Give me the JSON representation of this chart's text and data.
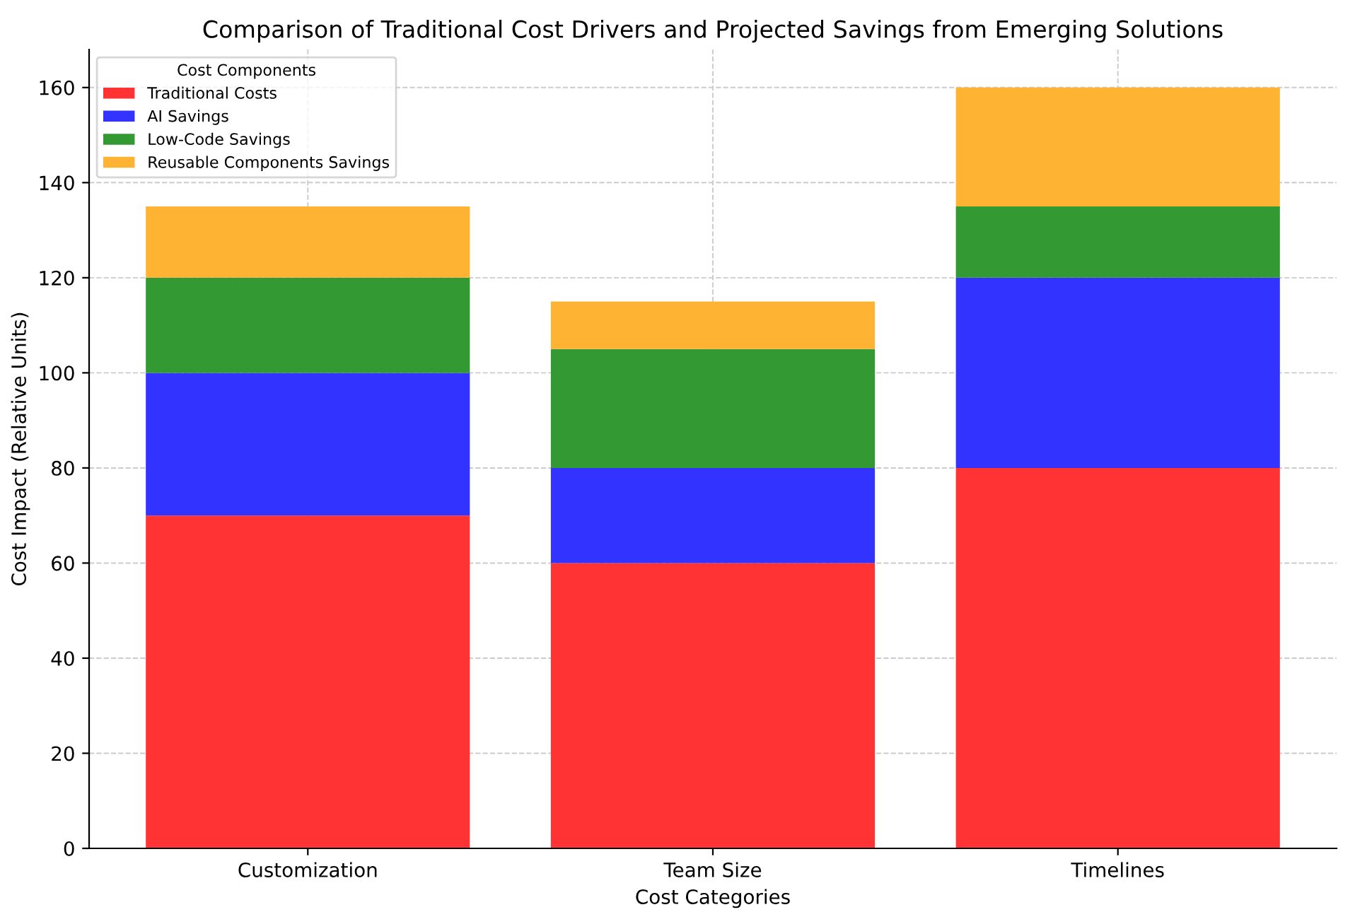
{
  "chart_data": {
    "type": "bar",
    "stacked": true,
    "title": "Comparison of Traditional Cost Drivers and Projected Savings from Emerging Solutions",
    "xlabel": "Cost Categories",
    "ylabel": "Cost Impact (Relative Units)",
    "legend_title": "Cost Components",
    "categories": [
      "Customization",
      "Team Size",
      "Timelines"
    ],
    "series": [
      {
        "name": "Traditional Costs",
        "color": "#ff3333",
        "values": [
          70,
          60,
          80
        ]
      },
      {
        "name": "AI Savings",
        "color": "#3333ff",
        "values": [
          30,
          20,
          40
        ]
      },
      {
        "name": "Low-Code Savings",
        "color": "#339933",
        "values": [
          20,
          25,
          15
        ]
      },
      {
        "name": "Reusable Components Savings",
        "color": "#ffb333",
        "values": [
          15,
          10,
          25
        ]
      }
    ],
    "ylim": [
      0,
      168
    ],
    "yticks": [
      0,
      20,
      40,
      60,
      80,
      100,
      120,
      140,
      160
    ],
    "grid": true,
    "legend": "top left"
  }
}
